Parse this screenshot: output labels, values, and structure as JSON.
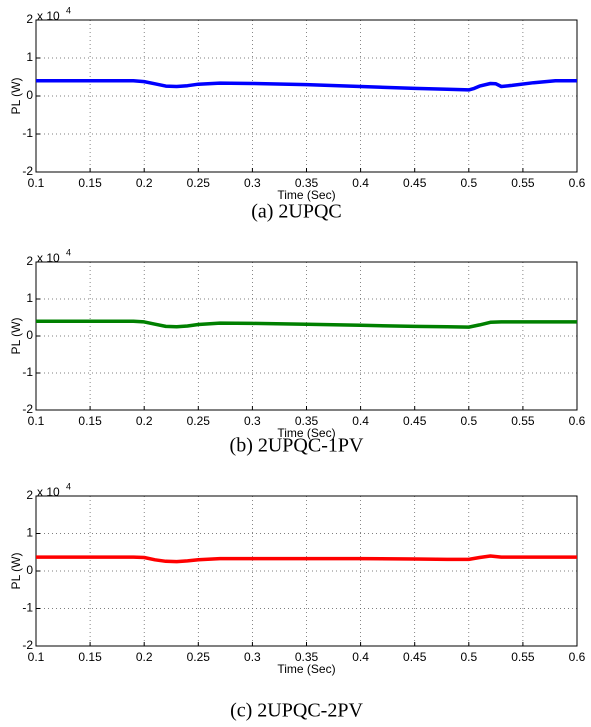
{
  "chart_data": [
    {
      "type": "line",
      "caption": "(a) 2UPQC",
      "x_label": "Time (Sec)",
      "y_label": "PL (W)",
      "y_scale_base": "x 10",
      "y_scale_exponent": "4",
      "x": [
        0.1,
        0.15,
        0.19,
        0.2,
        0.21,
        0.22,
        0.23,
        0.24,
        0.25,
        0.27,
        0.3,
        0.35,
        0.4,
        0.45,
        0.48,
        0.5,
        0.505,
        0.51,
        0.52,
        0.525,
        0.53,
        0.54,
        0.56,
        0.58,
        0.6
      ],
      "values": [
        0.4,
        0.4,
        0.4,
        0.38,
        0.32,
        0.26,
        0.25,
        0.27,
        0.31,
        0.34,
        0.33,
        0.3,
        0.25,
        0.2,
        0.18,
        0.16,
        0.2,
        0.26,
        0.33,
        0.32,
        0.25,
        0.28,
        0.35,
        0.4,
        0.4
      ],
      "color": "#0000ff",
      "xlim": [
        0.1,
        0.6
      ],
      "ylim": [
        -2,
        2
      ],
      "xticks": [
        0.1,
        0.15,
        0.2,
        0.25,
        0.3,
        0.35,
        0.4,
        0.45,
        0.5,
        0.55,
        0.6
      ],
      "yticks": [
        -2,
        -1,
        0,
        1,
        2
      ],
      "grid": true
    },
    {
      "type": "line",
      "caption": "(b) 2UPQC-1PV",
      "x_label": "Time (Sec)",
      "y_label": "PL (W)",
      "y_scale_base": "x 10",
      "y_scale_exponent": "4",
      "x": [
        0.1,
        0.15,
        0.19,
        0.2,
        0.21,
        0.22,
        0.23,
        0.24,
        0.25,
        0.27,
        0.3,
        0.35,
        0.4,
        0.45,
        0.48,
        0.5,
        0.51,
        0.52,
        0.53,
        0.55,
        0.6
      ],
      "values": [
        0.4,
        0.4,
        0.4,
        0.38,
        0.32,
        0.26,
        0.25,
        0.27,
        0.31,
        0.35,
        0.34,
        0.32,
        0.29,
        0.26,
        0.25,
        0.24,
        0.3,
        0.37,
        0.38,
        0.38,
        0.38
      ],
      "color": "#008000",
      "xlim": [
        0.1,
        0.6
      ],
      "ylim": [
        -2,
        2
      ],
      "xticks": [
        0.1,
        0.15,
        0.2,
        0.25,
        0.3,
        0.35,
        0.4,
        0.45,
        0.5,
        0.55,
        0.6
      ],
      "yticks": [
        -2,
        -1,
        0,
        1,
        2
      ],
      "grid": true
    },
    {
      "type": "line",
      "caption": "(c) 2UPQC-2PV",
      "x_label": "Time (Sec)",
      "y_label": "PL (W)",
      "y_scale_base": "x 10",
      "y_scale_exponent": "4",
      "x": [
        0.1,
        0.15,
        0.19,
        0.2,
        0.21,
        0.22,
        0.23,
        0.24,
        0.25,
        0.27,
        0.3,
        0.35,
        0.4,
        0.45,
        0.48,
        0.5,
        0.51,
        0.52,
        0.53,
        0.55,
        0.6
      ],
      "values": [
        0.37,
        0.37,
        0.37,
        0.36,
        0.3,
        0.26,
        0.25,
        0.27,
        0.3,
        0.33,
        0.33,
        0.33,
        0.33,
        0.32,
        0.31,
        0.31,
        0.36,
        0.4,
        0.37,
        0.37,
        0.37
      ],
      "color": "#ff0000",
      "xlim": [
        0.1,
        0.6
      ],
      "ylim": [
        -2,
        2
      ],
      "xticks": [
        0.1,
        0.15,
        0.2,
        0.25,
        0.3,
        0.35,
        0.4,
        0.45,
        0.5,
        0.55,
        0.6
      ],
      "yticks": [
        -2,
        -1,
        0,
        1,
        2
      ],
      "grid": true
    }
  ]
}
